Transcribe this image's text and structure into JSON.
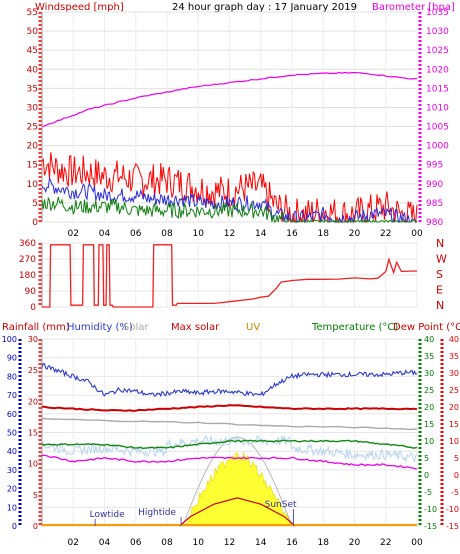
{
  "title": "24 hour graph day : 17 January 2019",
  "colors": {
    "windspeed": "#ff0000",
    "gust": "#ff0000",
    "wind_avg": "#2b2bd8",
    "wind_low": "#128012",
    "barometer": "#ee00ee",
    "direction": "#ee2222",
    "humidity": "#2d3acc",
    "temperature": "#cc0000",
    "dewpoint": "#ee00ee",
    "solar": "#aaaaaa",
    "maxsolar": "#cc0000",
    "uv": "#e6e600",
    "green_axis": "#008000",
    "blue_axis": "#0000cc",
    "red_axis": "#ee0000",
    "pink_axis": "#ee00ee",
    "tide": "#3333aa"
  },
  "chart_data": [
    {
      "type": "line",
      "name": "wind-barometer",
      "title": "24 hour graph day : 17 January 2019",
      "left_label": "Windspeed [mph]",
      "right_label": "Barometer [hpa]",
      "x_ticks": [
        "02",
        "04",
        "06",
        "08",
        "10",
        "12",
        "14",
        "16",
        "18",
        "20",
        "22",
        "00"
      ],
      "x_range": [
        0,
        24
      ],
      "y_left_ticks": [
        "0",
        "5",
        "10",
        "15",
        "20",
        "25",
        "30",
        "35",
        "40",
        "45",
        "50",
        "55"
      ],
      "y_left_range": [
        0,
        55
      ],
      "y_right_ticks": [
        "980",
        "985",
        "990",
        "995",
        "1000",
        "1005",
        "1010",
        "1015",
        "1020",
        "1025",
        "1030",
        "1035"
      ],
      "y_right_range": [
        980,
        1035
      ],
      "series": [
        {
          "key": "gust",
          "x": [
            0,
            1,
            2,
            3,
            4,
            5,
            6,
            7,
            8,
            9,
            10,
            11,
            12,
            13,
            14,
            15,
            16,
            17,
            18,
            19,
            20,
            21,
            22,
            23,
            24
          ],
          "values": [
            16,
            14,
            13,
            13,
            12,
            12,
            11,
            11,
            11,
            10,
            9,
            8,
            8,
            9,
            9,
            4,
            2,
            2,
            3,
            2,
            2,
            3,
            4,
            2,
            1
          ]
        },
        {
          "key": "wind_avg",
          "x": [
            0,
            1,
            2,
            3,
            4,
            5,
            6,
            7,
            8,
            9,
            10,
            11,
            12,
            13,
            14,
            15,
            16,
            17,
            18,
            19,
            20,
            21,
            22,
            23,
            24
          ],
          "values": [
            10,
            9,
            8,
            8,
            7,
            7,
            7,
            6,
            6,
            6,
            5,
            5,
            5,
            5,
            5,
            2,
            1,
            1,
            2,
            1,
            1,
            2,
            2,
            1,
            0
          ]
        },
        {
          "key": "wind_low",
          "x": [
            0,
            1,
            2,
            3,
            4,
            5,
            6,
            7,
            8,
            9,
            10,
            11,
            12,
            13,
            14,
            15,
            16,
            17,
            18,
            19,
            20,
            21,
            22,
            23,
            24
          ],
          "values": [
            5,
            5,
            4,
            4,
            4,
            4,
            3,
            3,
            3,
            3,
            3,
            3,
            3,
            3,
            3,
            1,
            0,
            0,
            0,
            0,
            0,
            0,
            0,
            0,
            0
          ]
        },
        {
          "key": "barometer",
          "x": [
            0,
            1,
            2,
            3,
            4,
            5,
            6,
            7,
            8,
            9,
            10,
            11,
            12,
            13,
            14,
            15,
            16,
            17,
            18,
            19,
            20,
            21,
            22,
            23,
            24
          ],
          "values": [
            1005,
            1006.5,
            1008,
            1009.5,
            1010.5,
            1011.5,
            1012.5,
            1013.3,
            1014,
            1014.8,
            1015.5,
            1016,
            1016.5,
            1017,
            1017.5,
            1018,
            1018.5,
            1018.7,
            1018.9,
            1019,
            1019.1,
            1018.8,
            1018.3,
            1017.8,
            1017.4
          ]
        }
      ]
    },
    {
      "type": "line",
      "name": "wind-direction",
      "y_ticks": [
        "360",
        "270",
        "180",
        "90",
        "0"
      ],
      "y_range": [
        0,
        360
      ],
      "compass": [
        "N",
        "W",
        "S",
        "E",
        "N"
      ],
      "series": [
        {
          "key": "direction",
          "x": [
            0,
            0.1,
            0.5,
            0.55,
            1.8,
            1.85,
            2.6,
            2.65,
            3.3,
            3.35,
            3.6,
            3.65,
            3.9,
            3.95,
            4.1,
            4.15,
            4.3,
            4.35,
            4.5,
            4.55,
            7.1,
            7.15,
            8.3,
            8.35,
            8.6,
            8.65,
            11,
            11.5,
            12,
            12.5,
            13,
            13.5,
            14,
            14.5,
            15,
            15.3,
            16,
            17,
            18,
            19,
            20,
            21,
            21.5,
            22,
            22.2,
            22.5,
            22.7,
            23,
            23.5,
            24
          ],
          "values": [
            0,
            0,
            0,
            350,
            350,
            10,
            10,
            350,
            350,
            10,
            10,
            350,
            350,
            10,
            10,
            350,
            350,
            10,
            10,
            0,
            0,
            350,
            350,
            10,
            10,
            20,
            20,
            25,
            30,
            35,
            40,
            45,
            55,
            60,
            110,
            140,
            150,
            155,
            158,
            155,
            160,
            158,
            165,
            200,
            265,
            190,
            250,
            200,
            200,
            200
          ]
        }
      ]
    },
    {
      "type": "line",
      "name": "weather-combined",
      "labels": {
        "rainfall": "Rainfall (mm)",
        "humidity": "Humidity (%)",
        "solar": "Solar",
        "maxsolar": "Max solar",
        "uv": "UV",
        "temperature": "Temperature (°C)",
        "dewpoint": "Dew Point (°C)"
      },
      "humidity_ticks": [
        "0",
        "10",
        "20",
        "30",
        "40",
        "50",
        "60",
        "70",
        "80",
        "90",
        "100"
      ],
      "rainfall_ticks": [
        "0",
        "5",
        "10",
        "15",
        "20",
        "25",
        "30"
      ],
      "uv_ticks": [
        "0",
        "1",
        "2",
        "3",
        "4",
        "5",
        "6",
        "7",
        "8",
        "9",
        "10"
      ],
      "temperature_ticks": [
        "-15",
        "-10",
        "-5",
        "0",
        "5",
        "10",
        "15",
        "20",
        "25",
        "30",
        "35",
        "40"
      ],
      "dewpoint_ticks": [
        "-15",
        "-10",
        "-5",
        "0",
        "5",
        "10",
        "15",
        "20",
        "25",
        "30",
        "35",
        "40"
      ],
      "x_ticks": [
        "02",
        "04",
        "06",
        "08",
        "10",
        "12",
        "14",
        "16",
        "18",
        "20",
        "22",
        "00"
      ],
      "annotations": [
        "Lowtide",
        "Hightide",
        "SunSet"
      ],
      "series": [
        {
          "key": "humidity",
          "x": [
            0,
            1,
            2,
            3,
            4,
            5,
            6,
            7,
            8,
            9,
            10,
            11,
            12,
            13,
            14,
            15,
            16,
            17,
            18,
            19,
            20,
            21,
            22,
            23,
            24
          ],
          "values": [
            86,
            83,
            80,
            77,
            70,
            73,
            72,
            70,
            71,
            72,
            71,
            72,
            72,
            71,
            70,
            76,
            80,
            81,
            81,
            81,
            81,
            81,
            81,
            82,
            82
          ]
        },
        {
          "key": "temperature",
          "x": [
            0,
            2,
            4,
            6,
            8,
            10,
            12,
            14,
            16,
            18,
            20,
            22,
            24
          ],
          "values": [
            20,
            19.5,
            19,
            19,
            19.5,
            20,
            20.5,
            20,
            19.5,
            19.5,
            19.5,
            19.5,
            19.5
          ]
        },
        {
          "key": "solar",
          "x": [
            0,
            2,
            4,
            6,
            8,
            10,
            12,
            14,
            16,
            18,
            20,
            22,
            24
          ],
          "values": [
            16.5,
            16.3,
            16,
            15.8,
            15.6,
            15.4,
            15,
            14.6,
            14.3,
            14.2,
            14,
            13.7,
            13.5
          ]
        },
        {
          "key": "dewpoint",
          "x": [
            0,
            2,
            4,
            6,
            8,
            10,
            12,
            14,
            16,
            18,
            20,
            22,
            24
          ],
          "values": [
            6,
            4,
            5,
            4,
            4,
            5,
            5,
            5,
            5,
            4,
            3,
            3,
            2
          ]
        },
        {
          "key": "temp_green",
          "x": [
            0,
            2,
            4,
            6,
            8,
            10,
            12,
            14,
            16,
            18,
            20,
            22,
            24
          ],
          "values": [
            9,
            9,
            9,
            8,
            8,
            9,
            10,
            10,
            10,
            10,
            10,
            9,
            8
          ]
        },
        {
          "key": "maxsolar",
          "x": [
            8.8,
            9.5,
            11,
            12.5,
            14,
            15.5,
            16.2
          ],
          "values": [
            0,
            1.5,
            3.5,
            4.5,
            3.5,
            1.5,
            0
          ]
        },
        {
          "key": "uv",
          "x": [
            9,
            9.5,
            10,
            11,
            12,
            12.5,
            13,
            14,
            15,
            15.5,
            16
          ],
          "values": [
            0,
            2,
            3.5,
            6,
            8,
            8.5,
            8,
            6,
            3.5,
            2,
            0
          ]
        }
      ]
    }
  ]
}
